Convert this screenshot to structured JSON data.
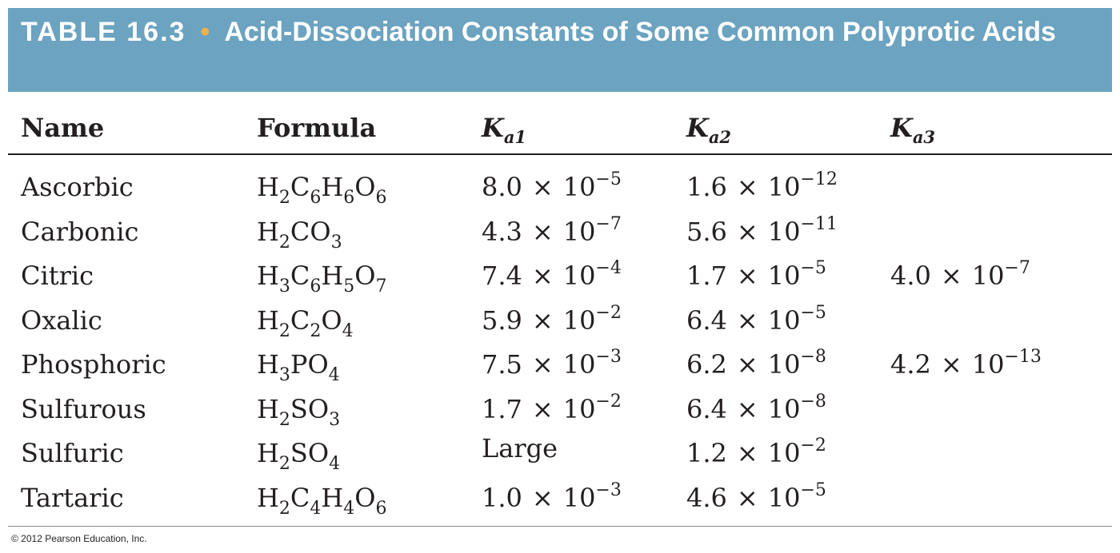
{
  "title": {
    "label": "TABLE 16.3",
    "bullet": "•",
    "text": "Acid-Dissociation Constants of Some Common Polyprotic Acids"
  },
  "headers": {
    "name": "Name",
    "formula": "Formula",
    "ka1_symbol": "K",
    "ka1_sub": "a1",
    "ka2_symbol": "K",
    "ka2_sub": "a2",
    "ka3_symbol": "K",
    "ka3_sub": "a3"
  },
  "rows": [
    {
      "name": "Ascorbic",
      "formula": [
        [
          "H",
          "2"
        ],
        [
          "C",
          "6"
        ],
        [
          "H",
          "6"
        ],
        [
          "O",
          "6"
        ]
      ],
      "ka1": {
        "mantissa": "8.0",
        "exponent": "−5"
      },
      "ka2": {
        "mantissa": "1.6",
        "exponent": "−12"
      },
      "ka3": null
    },
    {
      "name": "Carbonic",
      "formula": [
        [
          "H",
          "2"
        ],
        [
          "CO",
          "3"
        ]
      ],
      "ka1": {
        "mantissa": "4.3",
        "exponent": "−7"
      },
      "ka2": {
        "mantissa": "5.6",
        "exponent": "−11"
      },
      "ka3": null
    },
    {
      "name": "Citric",
      "formula": [
        [
          "H",
          "3"
        ],
        [
          "C",
          "6"
        ],
        [
          "H",
          "5"
        ],
        [
          "O",
          "7"
        ]
      ],
      "ka1": {
        "mantissa": "7.4",
        "exponent": "−4"
      },
      "ka2": {
        "mantissa": "1.7",
        "exponent": "−5"
      },
      "ka3": {
        "mantissa": "4.0",
        "exponent": "−7"
      }
    },
    {
      "name": "Oxalic",
      "formula": [
        [
          "H",
          "2"
        ],
        [
          "C",
          "2"
        ],
        [
          "O",
          "4"
        ]
      ],
      "ka1": {
        "mantissa": "5.9",
        "exponent": "−2"
      },
      "ka2": {
        "mantissa": "6.4",
        "exponent": "−5"
      },
      "ka3": null
    },
    {
      "name": "Phosphoric",
      "formula": [
        [
          "H",
          "3"
        ],
        [
          "PO",
          "4"
        ]
      ],
      "ka1": {
        "mantissa": "7.5",
        "exponent": "−3"
      },
      "ka2": {
        "mantissa": "6.2",
        "exponent": "−8"
      },
      "ka3": {
        "mantissa": "4.2",
        "exponent": "−13"
      }
    },
    {
      "name": "Sulfurous",
      "formula": [
        [
          "H",
          "2"
        ],
        [
          "SO",
          "3"
        ]
      ],
      "ka1": {
        "mantissa": "1.7",
        "exponent": "−2"
      },
      "ka2": {
        "mantissa": "6.4",
        "exponent": "−8"
      },
      "ka3": null
    },
    {
      "name": "Sulfuric",
      "formula": [
        [
          "H",
          "2"
        ],
        [
          "SO",
          "4"
        ]
      ],
      "ka1": {
        "text": "Large"
      },
      "ka2": {
        "mantissa": "1.2",
        "exponent": "−2"
      },
      "ka3": null
    },
    {
      "name": "Tartaric",
      "formula": [
        [
          "H",
          "2"
        ],
        [
          "C",
          "4"
        ],
        [
          "H",
          "4"
        ],
        [
          "O",
          "6"
        ]
      ],
      "ka1": {
        "mantissa": "1.0",
        "exponent": "−3"
      },
      "ka2": {
        "mantissa": "4.6",
        "exponent": "−5"
      },
      "ka3": null
    }
  ],
  "times_sign": "×",
  "base": "10",
  "copyright": "© 2012 Pearson Education, Inc.",
  "colors": {
    "title_bar": "#6ba3c0",
    "bullet": "#f0b14a",
    "text": "#231f20"
  }
}
